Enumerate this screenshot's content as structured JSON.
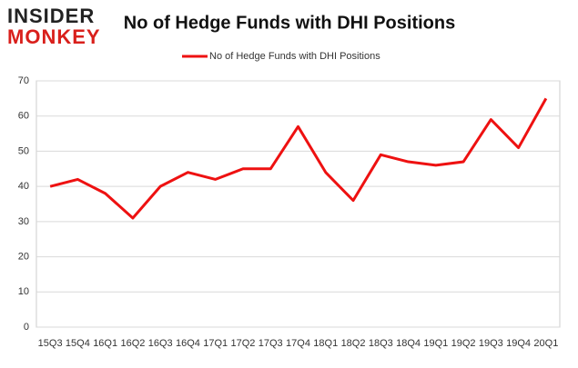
{
  "logo": {
    "line1": "INSIDER",
    "line2": "MONKEY"
  },
  "chart_data": {
    "type": "line",
    "title": "No of Hedge Funds with DHI Positions",
    "categories": [
      "15Q3",
      "15Q4",
      "16Q1",
      "16Q2",
      "16Q3",
      "16Q4",
      "17Q1",
      "17Q2",
      "17Q3",
      "17Q4",
      "18Q1",
      "18Q2",
      "18Q3",
      "18Q4",
      "19Q1",
      "19Q2",
      "19Q3",
      "19Q4",
      "20Q1"
    ],
    "series": [
      {
        "name": "No of Hedge Funds with DHI Positions",
        "color": "#ee1111",
        "values": [
          40,
          42,
          38,
          31,
          40,
          44,
          42,
          45,
          45,
          57,
          44,
          36,
          49,
          47,
          46,
          47,
          59,
          51,
          65
        ]
      }
    ],
    "ylim": [
      0,
      70
    ],
    "yticks": [
      0,
      10,
      20,
      30,
      40,
      50,
      60,
      70
    ],
    "grid": true,
    "legend": "top"
  }
}
